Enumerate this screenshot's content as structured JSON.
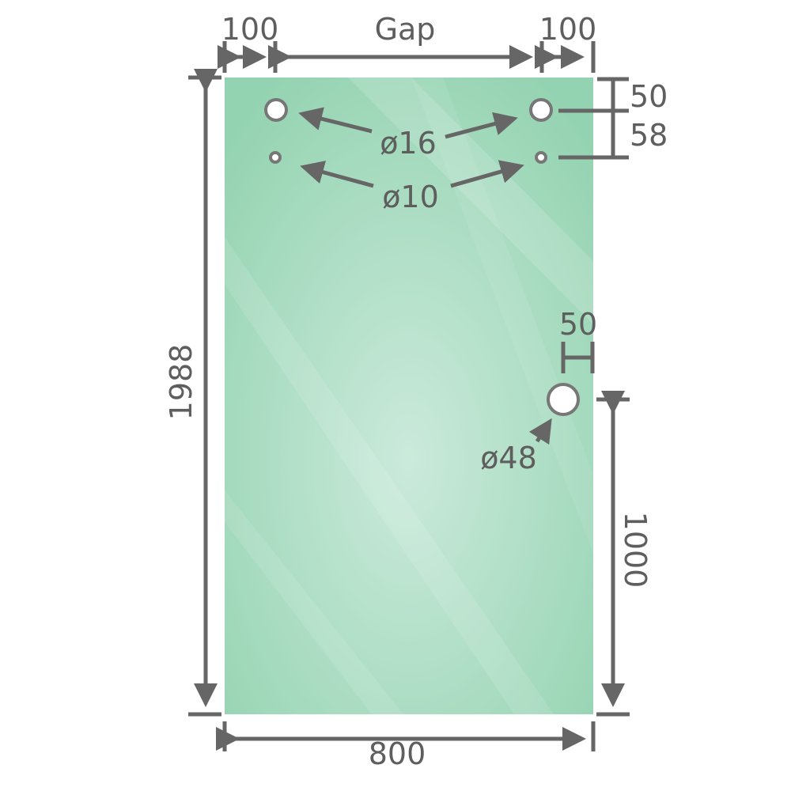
{
  "colors": {
    "glass_edge": "#94d3b1",
    "glass_center": "#cbeadb",
    "dimension": "#666666",
    "text": "#5e5e5e"
  },
  "dimensions": {
    "left_offset": "100",
    "gap": "Gap",
    "right_offset": "100",
    "height": "1988",
    "width": "800",
    "top_to_upper_holes": "50",
    "upper_to_lower_holes": "58",
    "handle_edge_offset": "50",
    "handle_height": "1000"
  },
  "holes": {
    "upper": "ø16",
    "lower": "ø10",
    "handle": "ø48"
  }
}
